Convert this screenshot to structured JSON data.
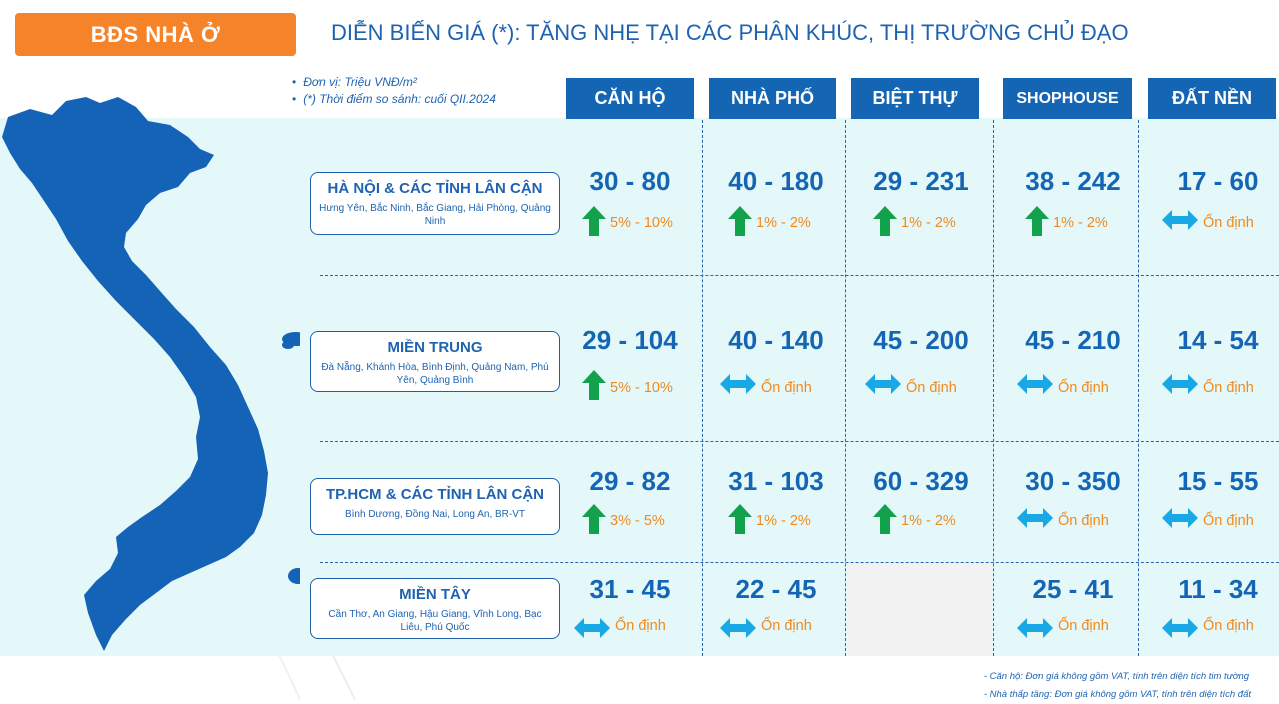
{
  "header": {
    "badge": "BĐS NHÀ Ở",
    "title": "DIỄN BIẾN GIÁ (*): TĂNG NHẸ TẠI CÁC PHÂN KHÚC, THỊ TRƯỜNG CHỦ ĐẠO"
  },
  "notes": [
    "Đơn vị: Triệu VNĐ/m²",
    "(*) Thời điểm so sánh: cuối QII.2024"
  ],
  "segments": [
    "CĂN HỘ",
    "NHÀ PHỐ",
    "BIỆT THỰ",
    "SHOPHOUSE",
    "ĐẤT NỀN"
  ],
  "regions": [
    {
      "name": "HÀ NỘI & CÁC TỈNH LÂN CẬN",
      "sub": "Hưng Yên, Bắc Ninh, Bắc Giang, Hải Phòng, Quảng Ninh",
      "cells": [
        {
          "range": "30 - 80",
          "trend": "up",
          "change": "5% - 10%"
        },
        {
          "range": "40 - 180",
          "trend": "up",
          "change": "1% - 2%"
        },
        {
          "range": "29 - 231",
          "trend": "up",
          "change": "1% - 2%"
        },
        {
          "range": "38 - 242",
          "trend": "up",
          "change": "1% - 2%"
        },
        {
          "range": "17 - 60",
          "trend": "stable",
          "change": "Ổn định"
        }
      ]
    },
    {
      "name": "MIỀN TRUNG",
      "sub": "Đà Nẵng, Khánh Hòa, Bình Định, Quảng Nam, Phú Yên, Quảng Bình",
      "cells": [
        {
          "range": "29 - 104",
          "trend": "up",
          "change": "5% - 10%"
        },
        {
          "range": "40 - 140",
          "trend": "stable",
          "change": "Ổn định"
        },
        {
          "range": "45 - 200",
          "trend": "stable",
          "change": "Ổn định"
        },
        {
          "range": "45 - 210",
          "trend": "stable",
          "change": "Ổn định"
        },
        {
          "range": "14 - 54",
          "trend": "stable",
          "change": "Ổn định"
        }
      ]
    },
    {
      "name": "TP.HCM & CÁC TỈNH LÂN CẬN",
      "sub": "Bình Dương, Đồng Nai, Long An, BR-VT",
      "cells": [
        {
          "range": "29 - 82",
          "trend": "up",
          "change": "3% - 5%"
        },
        {
          "range": "31 - 103",
          "trend": "up",
          "change": "1% - 2%"
        },
        {
          "range": "60 - 329",
          "trend": "up",
          "change": "1% - 2%"
        },
        {
          "range": "30 - 350",
          "trend": "stable",
          "change": "Ổn định"
        },
        {
          "range": "15 - 55",
          "trend": "stable",
          "change": "Ổn định"
        }
      ]
    },
    {
      "name": "MIỀN TÂY",
      "sub": "Cần Thơ, An Giang, Hậu Giang, Vĩnh Long, Bạc Liêu, Phú Quốc",
      "cells": [
        {
          "range": "31 - 45",
          "trend": "stable",
          "change": "Ổn định"
        },
        {
          "range": "22 - 45",
          "trend": "stable",
          "change": "Ổn định"
        },
        null,
        {
          "range": "25 - 41",
          "trend": "stable",
          "change": "Ổn định"
        },
        {
          "range": "11 - 34",
          "trend": "stable",
          "change": "Ổn định"
        }
      ]
    }
  ],
  "footnotes": [
    "Căn hộ: Đơn giá không gồm VAT, tính trên diện tích tim tường",
    "Nhà thấp tầng: Đơn giá không gồm VAT, tính trên diện tích đất"
  ],
  "colors": {
    "accent": "#f5832a",
    "header_blue": "#1565b5",
    "up_arrow": "#12a24b",
    "stable_arrow": "#19a8e6",
    "change_text": "#f08a1e",
    "panel": "#e4f8f9"
  },
  "icons": {
    "up": "up-arrow-icon",
    "stable": "double-arrow-icon",
    "map": "vietnam-map-icon"
  }
}
